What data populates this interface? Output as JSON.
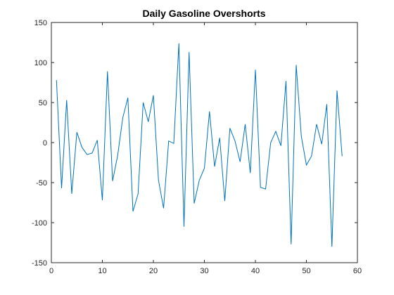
{
  "chart_data": {
    "type": "line",
    "title": "Daily Gasoline Overshorts",
    "xlabel": "",
    "ylabel": "",
    "xlim": [
      0,
      60
    ],
    "ylim": [
      -150,
      150
    ],
    "xticks": [
      0,
      10,
      20,
      30,
      40,
      50,
      60
    ],
    "yticks": [
      -150,
      -100,
      -50,
      0,
      50,
      100,
      150
    ],
    "grid": false,
    "line_color": "#0072BD",
    "series": [
      {
        "x": [
          1,
          2,
          3,
          4,
          5,
          6,
          7,
          8,
          9,
          10,
          11,
          12,
          13,
          14,
          15,
          16,
          17,
          18,
          19,
          20,
          21,
          22,
          23,
          24,
          25,
          26,
          27,
          28,
          29,
          30,
          31,
          32,
          33,
          34,
          35,
          36,
          37,
          38,
          39,
          40,
          41,
          42,
          43,
          44,
          45,
          46,
          47,
          48,
          49,
          50,
          51,
          52,
          53,
          54,
          55,
          56,
          57
        ],
        "values": [
          78,
          -57,
          53,
          -64,
          13,
          -6,
          -15,
          -13,
          3,
          -72,
          89,
          -48,
          -16,
          31,
          56,
          -86,
          -64,
          50,
          26,
          59,
          -47,
          -82,
          2,
          -1,
          124,
          -105,
          113,
          -76,
          -47,
          -32,
          39,
          -30,
          6,
          -73,
          18,
          2,
          -24,
          23,
          -38,
          91,
          -56,
          -58,
          0,
          14,
          -4,
          77,
          -127,
          97,
          8,
          -28,
          -17,
          23,
          -2,
          48,
          -130,
          65,
          -17
        ]
      }
    ]
  }
}
